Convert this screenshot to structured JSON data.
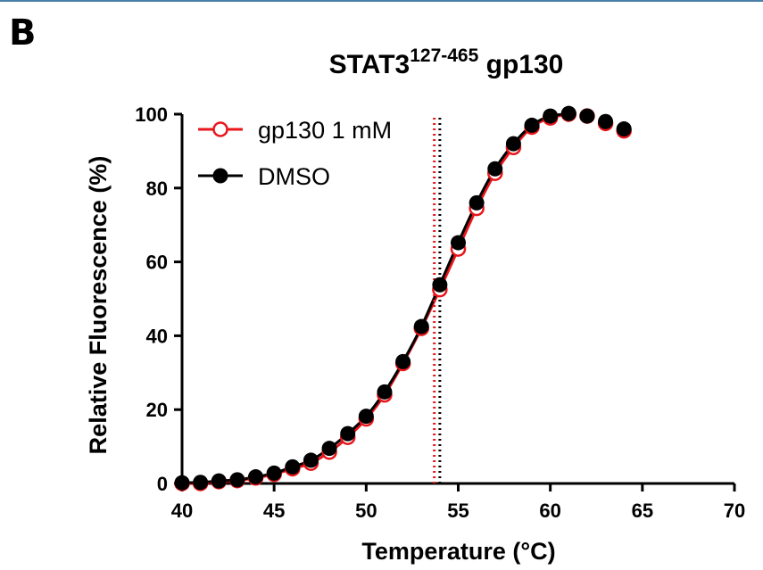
{
  "panel_label": "B",
  "chart_data": {
    "type": "scatter",
    "title": "STAT3",
    "title_superscript": "127-465",
    "title_suffix": " gp130",
    "xlabel": "Temperature (°C)",
    "ylabel": "Relative Fluorescence (%)",
    "xlim": [
      40,
      70
    ],
    "ylim": [
      0,
      100
    ],
    "x_ticks": [
      40,
      45,
      50,
      55,
      60,
      65,
      70
    ],
    "y_ticks": [
      0,
      20,
      40,
      60,
      80,
      100
    ],
    "legend_position": "top-left",
    "grid": false,
    "series": [
      {
        "name": "gp130 1 mM",
        "color": "#e8161b",
        "marker": "open-circle",
        "tm_line": 53.7,
        "x": [
          40,
          41,
          42,
          43,
          44,
          45,
          46,
          47,
          48,
          49,
          50,
          51,
          52,
          53,
          54,
          55,
          56,
          57,
          58,
          59,
          60,
          61,
          62,
          63,
          64
        ],
        "y": [
          0,
          0,
          0.5,
          0.8,
          1.5,
          2.5,
          4,
          5.5,
          8.5,
          12.5,
          17.5,
          24,
          32.5,
          42,
          52.5,
          63.5,
          74.5,
          84,
          91,
          96.5,
          99,
          100,
          99.5,
          97.5,
          95.5
        ]
      },
      {
        "name": "DMSO",
        "color": "#000000",
        "marker": "filled-circle",
        "tm_line": 54.0,
        "x": [
          40,
          41,
          42,
          43,
          44,
          45,
          46,
          47,
          48,
          49,
          50,
          51,
          52,
          53,
          54,
          55,
          56,
          57,
          58,
          59,
          60,
          61,
          62,
          63,
          64
        ],
        "y": [
          0.2,
          0.3,
          0.7,
          1,
          1.8,
          2.8,
          4.5,
          6.3,
          9.5,
          13.5,
          18.2,
          24.8,
          33,
          42.5,
          53.8,
          65.2,
          76,
          85.2,
          92,
          97,
          99.5,
          100.2,
          99.5,
          98,
          96
        ]
      }
    ]
  }
}
